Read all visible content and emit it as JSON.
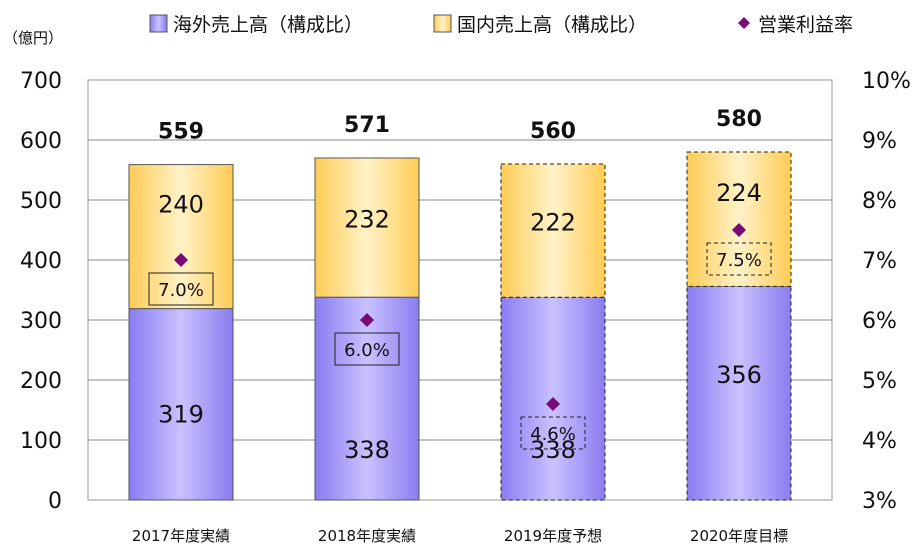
{
  "chart_data": {
    "type": "bar",
    "stacked": true,
    "left_axis_unit": "（億円）",
    "categories": [
      "2017年度実績",
      "2018年度実績",
      "2019年度予想",
      "2020年度目標"
    ],
    "series": [
      {
        "name": "海外売上高（構成比）",
        "values": [
          319,
          338,
          338,
          356
        ],
        "color": "#9b8ff5"
      },
      {
        "name": "国内売上高（構成比）",
        "values": [
          240,
          232,
          222,
          224
        ],
        "color": "#ffd67a"
      }
    ],
    "totals": [
      559,
      571,
      560,
      580
    ],
    "line_series": {
      "name": "営業利益率",
      "values": [
        7.0,
        6.0,
        4.6,
        7.5
      ],
      "labels": [
        "7.0%",
        "6.0%",
        "4.6%",
        "7.5%"
      ],
      "color": "#7a0a7a",
      "marker": "diamond"
    },
    "forecast_categories": [
      false,
      false,
      true,
      true
    ],
    "ylim_left": [
      0,
      700
    ],
    "yticks_left": [
      "0",
      "100",
      "200",
      "300",
      "400",
      "500",
      "600",
      "700"
    ],
    "ylim_right": [
      3,
      10
    ],
    "yticks_right": [
      "3%",
      "4%",
      "5%",
      "6%",
      "7%",
      "8%",
      "9%",
      "10%"
    ],
    "grid": true,
    "legend_position": "top"
  }
}
